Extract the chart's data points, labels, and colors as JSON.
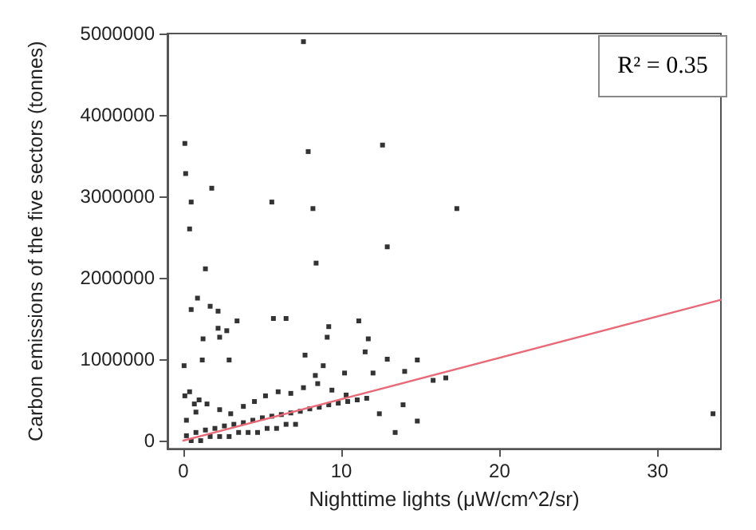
{
  "chart_data": {
    "type": "scatter",
    "xlabel": "Nighttime lights (μW/cm^2/sr)",
    "ylabel": "Carbon emissions of the five sectors (tonnes)",
    "annotations": [
      "R² = 0.35"
    ],
    "xlim": [
      -1,
      34
    ],
    "xticks": [
      0,
      10,
      20,
      30
    ],
    "ylim": [
      -100000,
      5000000
    ],
    "yticks": [
      0,
      1000000,
      2000000,
      3000000,
      4000000,
      5000000
    ],
    "grid": false,
    "marker": "square",
    "series": [
      {
        "color": "#000000",
        "x": [
          7.6,
          0.1,
          0.15,
          0.5,
          0.4,
          1.8,
          1.4,
          0.5,
          0.9,
          1.7,
          2.2,
          1.25,
          2.2,
          2.3,
          2.75,
          3.4,
          5.6,
          5.7,
          6.5,
          7.9,
          8.2,
          8.4,
          12.6,
          12.9,
          17.3,
          11.1,
          9.2,
          9.1,
          11.7,
          11.5,
          12.9,
          14.8,
          14.0,
          15.8,
          16.6,
          14.8,
          13.4,
          33.5,
          2.9,
          1.2,
          0.05,
          7.7,
          8.85,
          8.35,
          10.2,
          12.0,
          12.4,
          13.9,
          0.2,
          0.8,
          1.4,
          2.0,
          2.6,
          3.2,
          3.8,
          4.4,
          5.0,
          5.6,
          6.2,
          6.8,
          7.4,
          8.0,
          8.6,
          9.2,
          9.8,
          10.4,
          11.0,
          11.6,
          0.2,
          0.8,
          1.5,
          2.3,
          3.0,
          3.8,
          4.5,
          5.2,
          6.0,
          6.8,
          7.6,
          8.5,
          9.4,
          10.3,
          0.5,
          1.1,
          1.7,
          2.3,
          2.9,
          3.5,
          4.1,
          4.7,
          5.3,
          5.9,
          6.5,
          7.1,
          0.1,
          0.4,
          0.7,
          1.0
        ],
        "values": [
          4900000,
          3650000,
          3280000,
          2930000,
          2600000,
          3100000,
          2110000,
          1610000,
          1750000,
          1650000,
          1590000,
          1250000,
          1380000,
          1270000,
          1350000,
          1470000,
          2930000,
          1500000,
          1500000,
          3550000,
          2850000,
          2180000,
          3630000,
          2380000,
          2850000,
          1470000,
          1400000,
          1270000,
          1250000,
          1090000,
          1000000,
          990000,
          850000,
          740000,
          770000,
          240000,
          100000,
          330000,
          990000,
          990000,
          920000,
          1050000,
          920000,
          800000,
          830000,
          830000,
          330000,
          440000,
          60000,
          100000,
          130000,
          150000,
          180000,
          200000,
          220000,
          250000,
          280000,
          300000,
          320000,
          340000,
          360000,
          390000,
          410000,
          440000,
          460000,
          480000,
          500000,
          520000,
          250000,
          350000,
          450000,
          380000,
          330000,
          420000,
          480000,
          550000,
          600000,
          580000,
          650000,
          700000,
          620000,
          560000,
          0,
          0,
          50000,
          50000,
          50000,
          100000,
          100000,
          100000,
          150000,
          150000,
          200000,
          200000,
          550000,
          600000,
          450000,
          500000
        ]
      },
      {
        "type": "line",
        "color": "#e86a78",
        "marker": "none",
        "x": [
          0,
          34
        ],
        "values": [
          0,
          1730000
        ]
      }
    ]
  }
}
